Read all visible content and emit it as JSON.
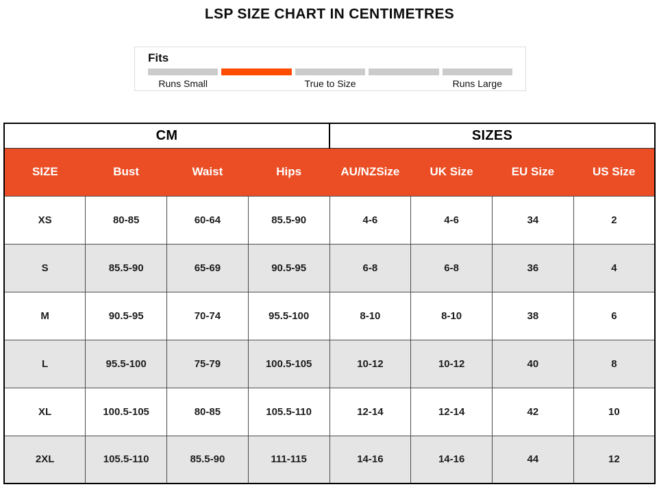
{
  "title": "LSP SIZE CHART IN CENTIMETRES",
  "fits": {
    "label": "Fits",
    "segment_count": 5,
    "active_segment_index": 1,
    "scale_labels": [
      "Runs Small",
      "True to Size",
      "Runs Large"
    ],
    "colors": {
      "active": "#FF4D00",
      "inactive": "#CBCBCB"
    }
  },
  "chart_data": {
    "type": "table",
    "title": "LSP SIZE CHART IN CENTIMETRES",
    "group_headers": [
      {
        "label": "CM",
        "span": 4
      },
      {
        "label": "SIZES",
        "span": 4
      }
    ],
    "columns": [
      "SIZE",
      "Bust",
      "Waist",
      "Hips",
      "AU/NZSize",
      "UK Size",
      "EU Size",
      "US Size"
    ],
    "rows": [
      [
        "XS",
        "80-85",
        "60-64",
        "85.5-90",
        "4-6",
        "4-6",
        "34",
        "2"
      ],
      [
        "S",
        "85.5-90",
        "65-69",
        "90.5-95",
        "6-8",
        "6-8",
        "36",
        "4"
      ],
      [
        "M",
        "90.5-95",
        "70-74",
        "95.5-100",
        "8-10",
        "8-10",
        "38",
        "6"
      ],
      [
        "L",
        "95.5-100",
        "75-79",
        "100.5-105",
        "10-12",
        "10-12",
        "40",
        "8"
      ],
      [
        "XL",
        "100.5-105",
        "80-85",
        "105.5-110",
        "12-14",
        "12-14",
        "42",
        "10"
      ],
      [
        "2XL",
        "105.5-110",
        "85.5-90",
        "111-115",
        "14-16",
        "14-16",
        "44",
        "12"
      ]
    ],
    "colors": {
      "header_bg": "#EB4E25",
      "header_text": "#FFFFFF",
      "row_alt_bg": "#E5E5E5",
      "grid_border": "#4B4B4B",
      "outer_border": "#000000"
    }
  }
}
